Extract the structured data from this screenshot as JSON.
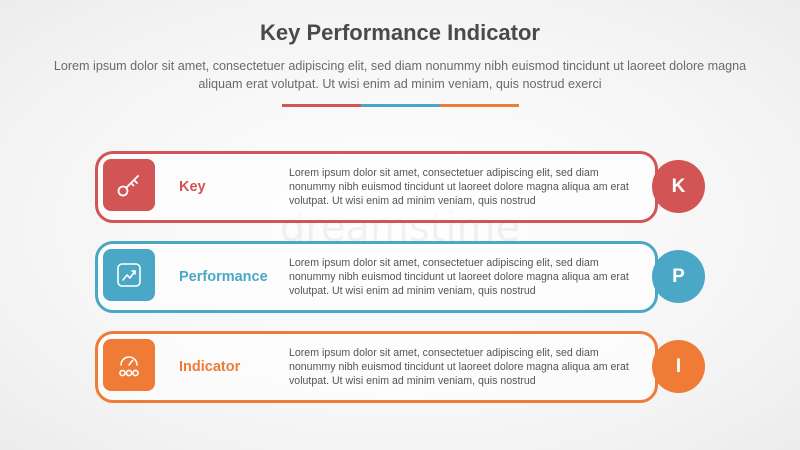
{
  "header": {
    "title": "Key Performance Indicator",
    "subtitle": "Lorem ipsum dolor sit amet, consectetuer adipiscing elit, sed diam nonummy nibh euismod tincidunt ut laoreet dolore magna aliquam erat volutpat. Ut wisi enim ad minim veniam, quis nostrud exerci"
  },
  "divider_colors": [
    "#d35454",
    "#4aa8c6",
    "#ef7b37"
  ],
  "rows": [
    {
      "label": "Key",
      "letter": "K",
      "icon": "key-icon",
      "color": "#d35454",
      "description": "Lorem ipsum dolor sit amet, consectetuer adipiscing elit, sed diam nonummy nibh euismod tincidunt ut laoreet dolore magna aliqua am erat volutpat. Ut wisi enim ad minim veniam, quis nostrud"
    },
    {
      "label": "Performance",
      "letter": "P",
      "icon": "chart-growth-icon",
      "color": "#4aa8c6",
      "description": "Lorem ipsum dolor sit amet, consectetuer adipiscing elit, sed diam nonummy nibh euismod tincidunt ut laoreet dolore magna aliqua am erat volutpat. Ut wisi enim ad minim veniam, quis nostrud"
    },
    {
      "label": "Indicator",
      "letter": "I",
      "icon": "gauge-icon",
      "color": "#ef7b37",
      "description": "Lorem ipsum dolor sit amet, consectetuer adipiscing elit, sed diam nonummy nibh euismod tincidunt ut laoreet dolore magna aliqua am erat volutpat. Ut wisi enim ad minim veniam, quis nostrud"
    }
  ],
  "watermark": "dreamstime"
}
